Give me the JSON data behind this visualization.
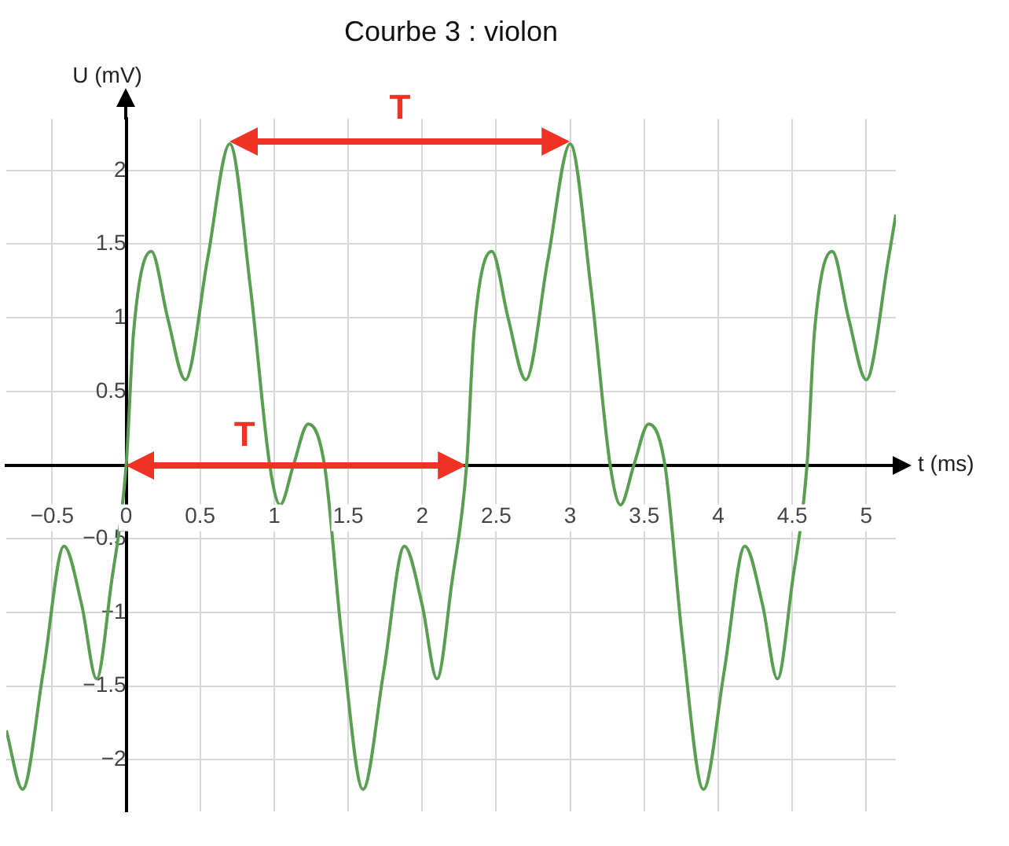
{
  "chart_data": {
    "type": "line",
    "title": "Courbe 3 : violon",
    "xlabel": "t (ms)",
    "ylabel": "U (mV)",
    "x": [
      -0.81,
      -0.7,
      -0.56,
      -0.42,
      -0.3,
      -0.2,
      -0.1,
      0,
      0.05,
      0.17,
      0.28,
      0.4,
      0.55,
      0.7,
      0.84,
      0.97,
      1.04,
      1.13,
      1.23,
      1.34,
      1.46,
      1.6,
      1.74,
      1.88,
      2.0,
      2.1,
      2.2,
      2.3,
      2.35,
      2.47,
      2.58,
      2.7,
      2.85,
      3.0,
      3.14,
      3.27,
      3.34,
      3.43,
      3.53,
      3.64,
      3.76,
      3.9,
      4.04,
      4.18,
      4.3,
      4.4,
      4.5,
      4.6,
      4.65,
      4.77,
      4.88,
      5.0,
      5.15,
      5.2
    ],
    "series": [
      {
        "color": "#5a9e52",
        "values": [
          -1.8,
          -2.2,
          -1.4,
          -0.55,
          -0.95,
          -1.45,
          -0.8,
          0,
          0.9,
          1.45,
          1.0,
          0.58,
          1.4,
          2.18,
          1.2,
          0,
          -0.27,
          0,
          0.28,
          0,
          -1.2,
          -2.2,
          -1.4,
          -0.55,
          -0.95,
          -1.45,
          -0.8,
          0,
          0.9,
          1.45,
          1.0,
          0.58,
          1.4,
          2.18,
          1.2,
          0,
          -0.27,
          0,
          0.28,
          0,
          -1.2,
          -2.2,
          -1.4,
          -0.55,
          -0.95,
          -1.45,
          -0.8,
          0,
          0.9,
          1.45,
          1.0,
          0.58,
          1.4,
          1.7
        ]
      }
    ],
    "xlim": [
      -0.81,
      5.2
    ],
    "ylim": [
      -2.35,
      2.35
    ],
    "xticks": [
      {
        "value": -0.5,
        "label": "−0.5"
      },
      0,
      0.5,
      1,
      1.5,
      2,
      2.5,
      3,
      3.5,
      4,
      4.5,
      5
    ],
    "yticks": [
      {
        "value": -2,
        "label": "−2"
      },
      {
        "value": -1.5,
        "label": "−1.5"
      },
      {
        "value": -1,
        "label": "−1"
      },
      {
        "value": -0.5,
        "label": "−0.5"
      },
      0.5,
      1,
      1.5,
      2
    ],
    "annotations": [
      "T",
      "T"
    ],
    "grid": true,
    "marker": "none",
    "line_style": "solid",
    "legend": false
  }
}
